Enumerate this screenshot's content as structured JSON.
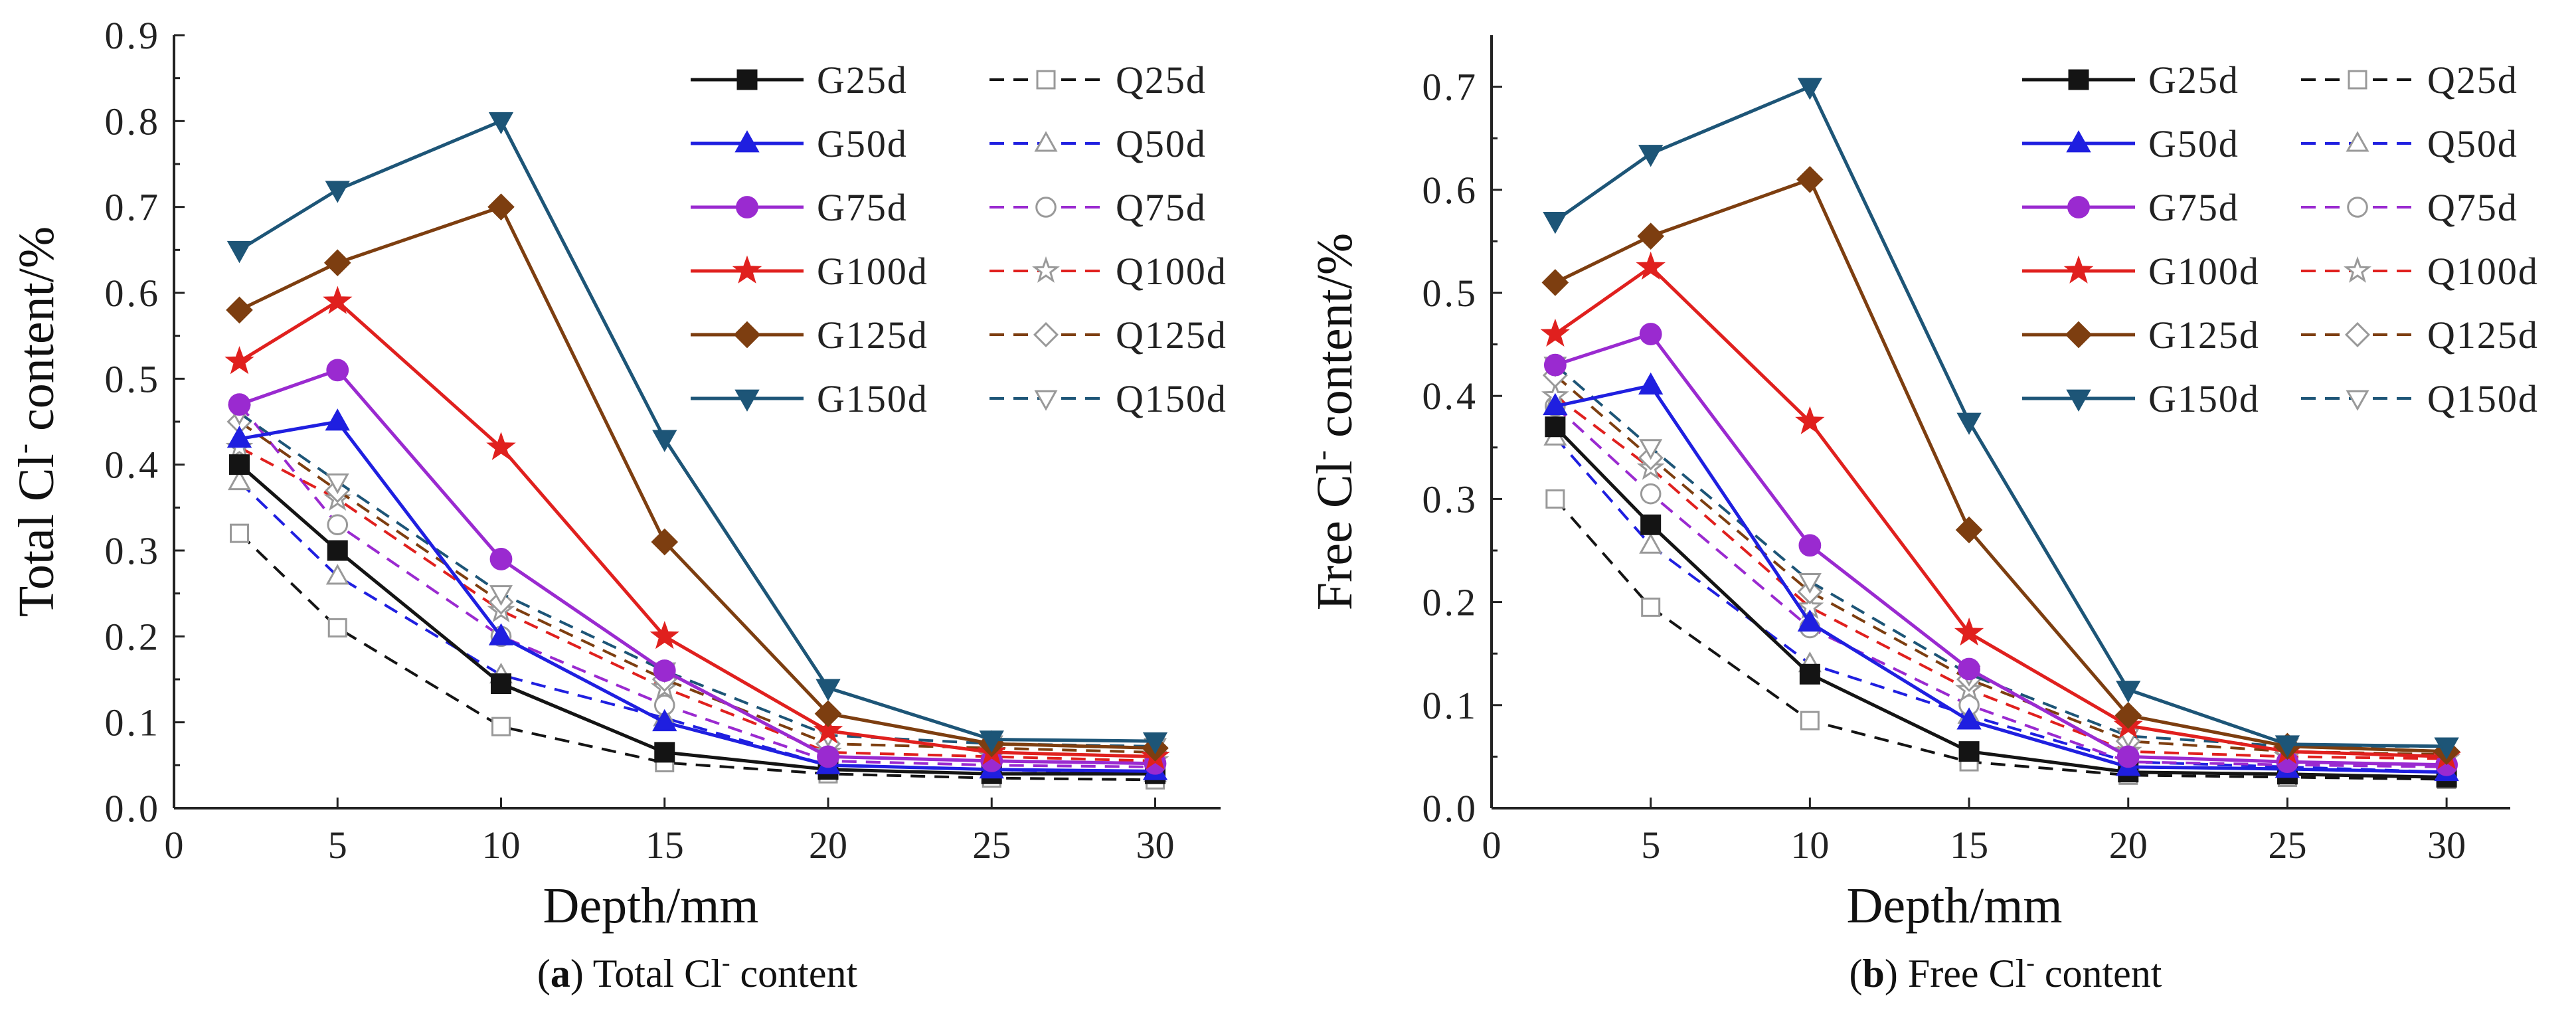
{
  "x": [
    2,
    5,
    10,
    15,
    20,
    25,
    30
  ],
  "colors": {
    "25d": "#141414",
    "50d": "#1f1fe0",
    "75d": "#9a2ad0",
    "100d": "#e0201e",
    "125d": "#7d3e10",
    "150d": "#1d5577"
  },
  "chart_data": [
    {
      "type": "line",
      "panel": "a",
      "xlabel": "Depth/mm",
      "ylabel_main": "Total Cl",
      "ylabel_sup": "-",
      "ylabel_tail": " content/%",
      "xlim": [
        0,
        32
      ],
      "ylim": [
        0,
        0.9
      ],
      "xticks": [
        "0",
        "5",
        "10",
        "15",
        "20",
        "25",
        "30"
      ],
      "yticks": [
        "0.0",
        "0.1",
        "0.2",
        "0.3",
        "0.4",
        "0.5",
        "0.6",
        "0.7",
        "0.8",
        "0.9"
      ],
      "grid": false,
      "legend_position": "top-right",
      "series": [
        {
          "name": "G25d",
          "group": "25d",
          "style": "solid",
          "marker": "square",
          "filled": true,
          "values": [
            0.4,
            0.3,
            0.145,
            0.065,
            0.045,
            0.04,
            0.04
          ]
        },
        {
          "name": "Q25d",
          "group": "25d",
          "style": "dashed",
          "marker": "square",
          "filled": false,
          "values": [
            0.32,
            0.21,
            0.095,
            0.053,
            0.04,
            0.035,
            0.033
          ]
        },
        {
          "name": "G50d",
          "group": "50d",
          "style": "solid",
          "marker": "triangle",
          "filled": true,
          "values": [
            0.43,
            0.45,
            0.2,
            0.1,
            0.05,
            0.045,
            0.043
          ]
        },
        {
          "name": "Q50d",
          "group": "50d",
          "style": "dashed",
          "marker": "triangle",
          "filled": false,
          "values": [
            0.38,
            0.27,
            0.155,
            0.105,
            0.05,
            0.045,
            0.04
          ]
        },
        {
          "name": "G75d",
          "group": "75d",
          "style": "solid",
          "marker": "circle",
          "filled": true,
          "values": [
            0.47,
            0.51,
            0.29,
            0.16,
            0.06,
            0.055,
            0.052
          ]
        },
        {
          "name": "Q75d",
          "group": "75d",
          "style": "dashed",
          "marker": "circle",
          "filled": false,
          "values": [
            0.47,
            0.33,
            0.2,
            0.12,
            0.055,
            0.05,
            0.048
          ]
        },
        {
          "name": "G100d",
          "group": "100d",
          "style": "solid",
          "marker": "star",
          "filled": true,
          "values": [
            0.52,
            0.59,
            0.42,
            0.2,
            0.09,
            0.065,
            0.06
          ]
        },
        {
          "name": "Q100d",
          "group": "100d",
          "style": "dashed",
          "marker": "star",
          "filled": false,
          "values": [
            0.42,
            0.36,
            0.23,
            0.14,
            0.065,
            0.06,
            0.055
          ]
        },
        {
          "name": "G125d",
          "group": "125d",
          "style": "solid",
          "marker": "diamond",
          "filled": true,
          "values": [
            0.58,
            0.635,
            0.7,
            0.31,
            0.11,
            0.075,
            0.07
          ]
        },
        {
          "name": "Q125d",
          "group": "125d",
          "style": "dashed",
          "marker": "diamond",
          "filled": false,
          "values": [
            0.45,
            0.37,
            0.24,
            0.15,
            0.075,
            0.07,
            0.065
          ]
        },
        {
          "name": "G150d",
          "group": "150d",
          "style": "solid",
          "marker": "tri-down",
          "filled": true,
          "values": [
            0.65,
            0.72,
            0.8,
            0.43,
            0.14,
            0.08,
            0.078
          ]
        },
        {
          "name": "Q150d",
          "group": "150d",
          "style": "dashed",
          "marker": "tri-down",
          "filled": false,
          "values": [
            0.46,
            0.38,
            0.25,
            0.16,
            0.085,
            0.075,
            0.072
          ]
        }
      ]
    },
    {
      "type": "line",
      "panel": "b",
      "xlabel": "Depth/mm",
      "ylabel_main": "Free Cl",
      "ylabel_sup": "-",
      "ylabel_tail": " content/%",
      "xlim": [
        0,
        32
      ],
      "ylim": [
        0,
        0.75
      ],
      "xticks": [
        "0",
        "5",
        "10",
        "15",
        "20",
        "25",
        "30"
      ],
      "yticks": [
        "0.0",
        "0.1",
        "0.2",
        "0.3",
        "0.4",
        "0.5",
        "0.6",
        "0.7"
      ],
      "grid": false,
      "legend_position": "top-right",
      "series": [
        {
          "name": "G25d",
          "group": "25d",
          "style": "solid",
          "marker": "square",
          "filled": true,
          "values": [
            0.37,
            0.275,
            0.13,
            0.055,
            0.035,
            0.033,
            0.03
          ]
        },
        {
          "name": "Q25d",
          "group": "25d",
          "style": "dashed",
          "marker": "square",
          "filled": false,
          "values": [
            0.3,
            0.195,
            0.085,
            0.045,
            0.032,
            0.03,
            0.028
          ]
        },
        {
          "name": "G50d",
          "group": "50d",
          "style": "solid",
          "marker": "triangle",
          "filled": true,
          "values": [
            0.39,
            0.41,
            0.18,
            0.085,
            0.04,
            0.038,
            0.035
          ]
        },
        {
          "name": "Q50d",
          "group": "50d",
          "style": "dashed",
          "marker": "triangle",
          "filled": false,
          "values": [
            0.36,
            0.255,
            0.14,
            0.09,
            0.045,
            0.04,
            0.035
          ]
        },
        {
          "name": "G75d",
          "group": "75d",
          "style": "solid",
          "marker": "circle",
          "filled": true,
          "values": [
            0.43,
            0.46,
            0.255,
            0.135,
            0.05,
            0.045,
            0.042
          ]
        },
        {
          "name": "Q75d",
          "group": "75d",
          "style": "dashed",
          "marker": "circle",
          "filled": false,
          "values": [
            0.39,
            0.305,
            0.175,
            0.1,
            0.045,
            0.042,
            0.04
          ]
        },
        {
          "name": "G100d",
          "group": "100d",
          "style": "solid",
          "marker": "star",
          "filled": true,
          "values": [
            0.46,
            0.525,
            0.375,
            0.17,
            0.08,
            0.055,
            0.05
          ]
        },
        {
          "name": "Q100d",
          "group": "100d",
          "style": "dashed",
          "marker": "star",
          "filled": false,
          "values": [
            0.4,
            0.33,
            0.195,
            0.115,
            0.055,
            0.05,
            0.048
          ]
        },
        {
          "name": "G125d",
          "group": "125d",
          "style": "solid",
          "marker": "diamond",
          "filled": true,
          "values": [
            0.51,
            0.555,
            0.61,
            0.27,
            0.09,
            0.06,
            0.055
          ]
        },
        {
          "name": "Q125d",
          "group": "125d",
          "style": "dashed",
          "marker": "diamond",
          "filled": false,
          "values": [
            0.42,
            0.34,
            0.21,
            0.125,
            0.065,
            0.055,
            0.052
          ]
        },
        {
          "name": "G150d",
          "group": "150d",
          "style": "solid",
          "marker": "tri-down",
          "filled": true,
          "values": [
            0.57,
            0.635,
            0.7,
            0.375,
            0.115,
            0.062,
            0.06
          ]
        },
        {
          "name": "Q150d",
          "group": "150d",
          "style": "dashed",
          "marker": "tri-down",
          "filled": false,
          "values": [
            0.43,
            0.35,
            0.22,
            0.13,
            0.07,
            0.06,
            0.06
          ]
        }
      ]
    }
  ],
  "captions": [
    {
      "label": "a",
      "pre": "(",
      "post": ") ",
      "text_main": "Total Cl",
      "text_sup": "-",
      "text_tail": " content"
    },
    {
      "label": "b",
      "pre": "(",
      "post": ") ",
      "text_main": "Free Cl",
      "text_sup": "-",
      "text_tail": " content"
    }
  ]
}
